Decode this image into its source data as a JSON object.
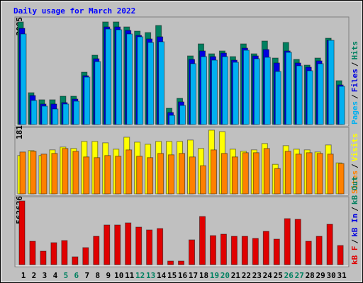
{
  "title": "Daily usage for March 2022",
  "legend_separator": "/",
  "chart_data": [
    {
      "type": "bar",
      "ylim": [
        0,
        3095
      ],
      "yticks": [
        3095
      ],
      "categories": [
        "1",
        "2",
        "3",
        "4",
        "5",
        "6",
        "7",
        "8",
        "9",
        "10",
        "11",
        "12",
        "13",
        "14",
        "15",
        "16",
        "17",
        "18",
        "19",
        "20",
        "21",
        "22",
        "23",
        "24",
        "25",
        "26",
        "27",
        "28",
        "29",
        "30",
        "31"
      ],
      "series": [
        {
          "name": "Hits",
          "color": "#008060",
          "values": [
            3095,
            960,
            747,
            747,
            854,
            854,
            1579,
            2092,
            3095,
            3095,
            2945,
            2817,
            2775,
            2988,
            491,
            790,
            2070,
            2433,
            2134,
            2220,
            2049,
            2433,
            2134,
            2519,
            2006,
            2476,
            1964,
            1793,
            2006,
            2604,
            1323
          ]
        },
        {
          "name": "Files",
          "color": "#0000e0",
          "values": [
            2902,
            875,
            619,
            619,
            662,
            768,
            1473,
            1985,
            2945,
            2945,
            2839,
            2689,
            2583,
            2647,
            363,
            683,
            1964,
            2220,
            2049,
            2156,
            1942,
            2305,
            2070,
            2262,
            1857,
            2220,
            1857,
            1729,
            1921,
            2540,
            1195
          ]
        },
        {
          "name": "Pages",
          "color": "#00b0f0",
          "values": [
            2732,
            726,
            555,
            470,
            619,
            704,
            1430,
            1900,
            2881,
            2860,
            2732,
            2647,
            2476,
            2497,
            277,
            576,
            1836,
            2049,
            1942,
            2049,
            1878,
            2241,
            1985,
            2028,
            1601,
            2177,
            1772,
            1622,
            1836,
            2540,
            1153
          ]
        }
      ]
    },
    {
      "type": "bar",
      "ylim": [
        0,
        181
      ],
      "yticks": [
        181
      ],
      "categories": [
        "1",
        "2",
        "3",
        "4",
        "5",
        "6",
        "7",
        "8",
        "9",
        "10",
        "11",
        "12",
        "13",
        "14",
        "15",
        "16",
        "17",
        "18",
        "19",
        "20",
        "21",
        "22",
        "23",
        "24",
        "25",
        "26",
        "27",
        "28",
        "29",
        "30",
        "31"
      ],
      "series": [
        {
          "name": "Visits",
          "color": "#ffff00",
          "values": [
            109,
            123,
            109,
            125,
            133,
            129,
            149,
            149,
            145,
            127,
            161,
            147,
            141,
            149,
            149,
            149,
            153,
            129,
            181,
            177,
            127,
            121,
            125,
            143,
            84,
            137,
            127,
            125,
            119,
            139,
            88
          ]
        },
        {
          "name": "Sites",
          "color": "#ff8000",
          "values": [
            119,
            121,
            113,
            115,
            129,
            121,
            105,
            103,
            109,
            107,
            125,
            107,
            103,
            115,
            111,
            115,
            105,
            80,
            125,
            115,
            105,
            117,
            117,
            129,
            72,
            121,
            113,
            117,
            115,
            113,
            86
          ]
        }
      ]
    },
    {
      "type": "bar",
      "ylim": [
        0,
        562626
      ],
      "yticks": [
        562626
      ],
      "categories": [
        "1",
        "2",
        "3",
        "4",
        "5",
        "6",
        "7",
        "8",
        "9",
        "10",
        "11",
        "12",
        "13",
        "14",
        "15",
        "16",
        "17",
        "18",
        "19",
        "20",
        "21",
        "22",
        "23",
        "24",
        "25",
        "26",
        "27",
        "28",
        "29",
        "30",
        "31"
      ],
      "category_colors": [
        "#000000",
        "#000000",
        "#000000",
        "#000000",
        "#008060",
        "#008060",
        "#000000",
        "#000000",
        "#000000",
        "#000000",
        "#000000",
        "#008060",
        "#008060",
        "#000000",
        "#000000",
        "#000000",
        "#000000",
        "#000000",
        "#008060",
        "#008060",
        "#000000",
        "#000000",
        "#000000",
        "#000000",
        "#000000",
        "#008060",
        "#008060",
        "#000000",
        "#000000",
        "#000000",
        "#000000"
      ],
      "series": [
        {
          "name": "kB Out",
          "color": "#008060",
          "values": [
            null,
            null,
            null,
            null,
            null,
            null,
            null,
            null,
            null,
            null,
            null,
            null,
            null,
            null,
            null,
            null,
            null,
            null,
            null,
            null,
            null,
            null,
            null,
            null,
            null,
            null,
            null,
            null,
            null,
            null,
            null
          ]
        },
        {
          "name": "kB In",
          "color": "#0000e0",
          "values": [
            null,
            null,
            null,
            null,
            null,
            null,
            null,
            null,
            null,
            null,
            null,
            null,
            null,
            null,
            null,
            null,
            null,
            null,
            null,
            null,
            null,
            null,
            null,
            null,
            null,
            null,
            null,
            null,
            null,
            null,
            null
          ]
        },
        {
          "name": "kB F",
          "color": "#e00000",
          "values": [
            562626,
            206296,
            118777,
            193793,
            212548,
            68765,
            150034,
            250056,
            350078,
            350078,
            368832,
            331324,
            306318,
            318821,
            31257,
            31257,
            218800,
            425095,
            256307,
            268809,
            250056,
            250056,
            231302,
            293815,
            225050,
            406341,
            400089,
            206296,
            250056,
            356329,
            168788
          ]
        }
      ]
    }
  ]
}
